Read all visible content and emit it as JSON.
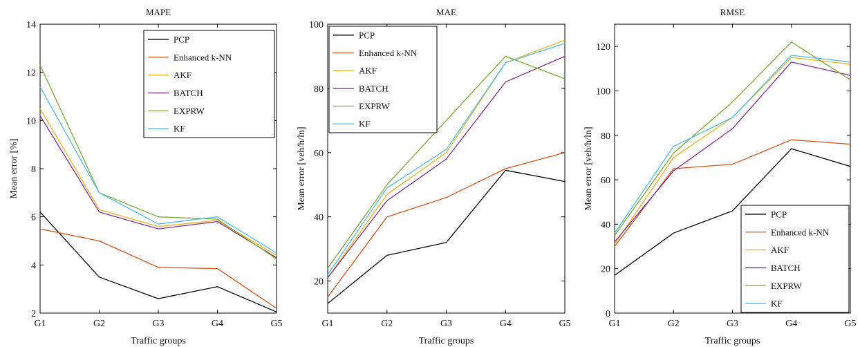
{
  "chart_data": [
    {
      "type": "line",
      "title": "MAPE",
      "xlabel": "Traffic groups",
      "ylabel": "Mean error [%]",
      "categories": [
        "G1",
        "G2",
        "G3",
        "G4",
        "G5"
      ],
      "ylim": [
        2,
        14
      ],
      "yticks": [
        2,
        4,
        6,
        8,
        10,
        12,
        14
      ],
      "legend": "top-right",
      "grid": false,
      "series": [
        {
          "name": "PCP",
          "color": "#000000",
          "values": [
            6.2,
            3.5,
            2.6,
            3.1,
            2.05
          ]
        },
        {
          "name": "Enhanced k-NN",
          "color": "#d95319",
          "values": [
            5.5,
            5.0,
            3.9,
            3.85,
            2.2
          ]
        },
        {
          "name": "AKF",
          "color": "#edb120",
          "values": [
            10.5,
            6.3,
            5.6,
            5.85,
            4.4
          ]
        },
        {
          "name": "BATCH",
          "color": "#7e2f8e",
          "values": [
            10.2,
            6.2,
            5.5,
            5.8,
            4.3
          ]
        },
        {
          "name": "EXPRW",
          "color": "#77ac30",
          "values": [
            12.3,
            7.0,
            6.0,
            5.9,
            4.25
          ]
        },
        {
          "name": "KF",
          "color": "#4dbeee",
          "values": [
            11.4,
            7.0,
            5.7,
            6.0,
            4.5
          ]
        }
      ]
    },
    {
      "type": "line",
      "title": "MAE",
      "xlabel": "Traffic groups",
      "ylabel": "Mean error [veh/h/ln]",
      "categories": [
        "G1",
        "G2",
        "G3",
        "G4",
        "G5"
      ],
      "ylim": [
        10,
        100
      ],
      "yticks": [
        20,
        40,
        60,
        80,
        100
      ],
      "legend": "top-left",
      "grid": false,
      "series": [
        {
          "name": "PCP",
          "color": "#000000",
          "values": [
            13,
            28,
            32,
            54.5,
            51
          ]
        },
        {
          "name": "Enhanced k-NN",
          "color": "#d95319",
          "values": [
            15,
            40,
            46,
            55,
            60
          ]
        },
        {
          "name": "AKF",
          "color": "#edb120",
          "values": [
            21,
            47,
            60,
            88,
            95
          ]
        },
        {
          "name": "BATCH",
          "color": "#7e2f8e",
          "values": [
            21,
            45,
            58,
            82,
            90
          ]
        },
        {
          "name": "EXPRW",
          "color": "#77ac30",
          "values": [
            24,
            50,
            70,
            90,
            83
          ]
        },
        {
          "name": "KF",
          "color": "#4dbeee",
          "values": [
            22,
            49,
            61,
            88,
            94
          ]
        }
      ]
    },
    {
      "type": "line",
      "title": "RMSE",
      "xlabel": "Traffic groups",
      "ylabel": "Mean error [veh/h/ln]",
      "categories": [
        "G1",
        "G2",
        "G3",
        "G4",
        "G5"
      ],
      "ylim": [
        0,
        130
      ],
      "yticks": [
        0,
        20,
        40,
        60,
        80,
        100,
        120
      ],
      "legend": "bottom-right",
      "grid": false,
      "series": [
        {
          "name": "PCP",
          "color": "#000000",
          "values": [
            17,
            36,
            46,
            74,
            66
          ]
        },
        {
          "name": "Enhanced k-NN",
          "color": "#d95319",
          "values": [
            30,
            65,
            67,
            78,
            76
          ]
        },
        {
          "name": "AKF",
          "color": "#edb120",
          "values": [
            31,
            70,
            88,
            115,
            112
          ]
        },
        {
          "name": "BATCH",
          "color": "#7e2f8e",
          "values": [
            32,
            64,
            83,
            113,
            107
          ]
        },
        {
          "name": "EXPRW",
          "color": "#77ac30",
          "values": [
            35,
            72,
            95,
            122,
            105
          ]
        },
        {
          "name": "KF",
          "color": "#4dbeee",
          "values": [
            36,
            75,
            88,
            116,
            113
          ]
        }
      ]
    }
  ]
}
